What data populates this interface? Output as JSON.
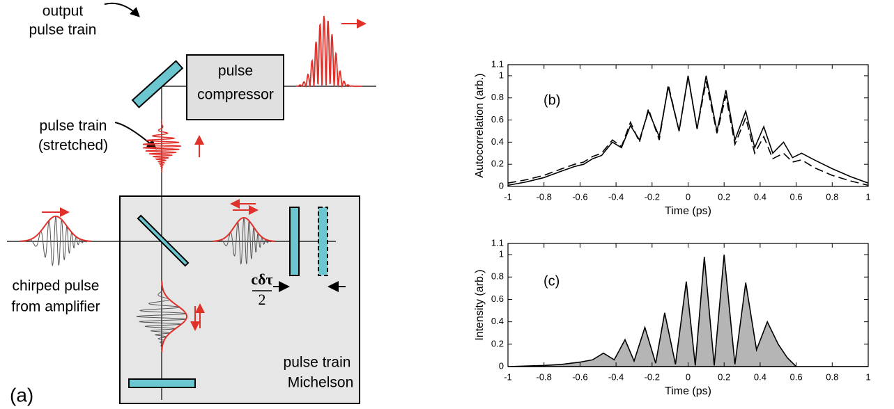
{
  "diagram": {
    "panel_label": "(a)",
    "output_label": [
      "output",
      "pulse train"
    ],
    "compressor_label": [
      "pulse",
      "compressor"
    ],
    "stretched_label": [
      "pulse train",
      "(stretched)"
    ],
    "input_label": [
      "chirped pulse",
      "from amplifier"
    ],
    "michelson_label": [
      "pulse train",
      "Michelson"
    ],
    "delay_label": {
      "numerator": "cδτ",
      "denominator": "2"
    }
  },
  "chart_data": [
    {
      "type": "line",
      "annotation": "(b)",
      "xlabel": "Time (ps)",
      "ylabel": "Autocorrelation (arb.)",
      "x": [
        -1,
        -0.9,
        -0.8,
        -0.7,
        -0.63,
        -0.58,
        -0.53,
        -0.48,
        -0.42,
        -0.37,
        -0.32,
        -0.27,
        -0.22,
        -0.16,
        -0.11,
        -0.05,
        0,
        0.05,
        0.1,
        0.16,
        0.21,
        0.26,
        0.32,
        0.37,
        0.42,
        0.47,
        0.53,
        0.58,
        0.63,
        0.7,
        0.8,
        0.9,
        1
      ],
      "series": [
        {
          "color": "#000000",
          "linestyle": "solid",
          "values": [
            0.01,
            0.04,
            0.08,
            0.14,
            0.18,
            0.2,
            0.25,
            0.28,
            0.4,
            0.35,
            0.55,
            0.42,
            0.68,
            0.45,
            0.9,
            0.5,
            1,
            0.52,
            1,
            0.5,
            0.87,
            0.42,
            0.68,
            0.35,
            0.54,
            0.3,
            0.4,
            0.26,
            0.3,
            0.24,
            0.16,
            0.09,
            0.03
          ]
        },
        {
          "color": "#000000",
          "linestyle": "dashed",
          "values": [
            0.03,
            0.06,
            0.1,
            0.16,
            0.2,
            0.22,
            0.27,
            0.3,
            0.42,
            0.36,
            0.58,
            0.4,
            0.7,
            0.42,
            0.92,
            0.5,
            0.99,
            0.52,
            0.95,
            0.48,
            0.82,
            0.38,
            0.62,
            0.3,
            0.45,
            0.25,
            0.3,
            0.22,
            0.24,
            0.17,
            0.1,
            0.05,
            0.01
          ]
        }
      ],
      "xlim": [
        -1,
        1
      ],
      "xticks": [
        -1,
        -0.8,
        -0.6,
        -0.4,
        -0.2,
        0,
        0.2,
        0.4,
        0.6,
        0.8,
        1
      ],
      "ylim": [
        0,
        1.1
      ],
      "yticks": [
        0,
        0.2,
        0.4,
        0.6,
        0.8,
        1,
        1.1
      ]
    },
    {
      "type": "area",
      "annotation": "(c)",
      "xlabel": "Time (ps)",
      "ylabel": "Intensity (arb.)",
      "x": [
        -1,
        -0.8,
        -0.7,
        -0.6,
        -0.53,
        -0.47,
        -0.41,
        -0.35,
        -0.3,
        -0.24,
        -0.18,
        -0.13,
        -0.07,
        -0.01,
        0.04,
        0.09,
        0.145,
        0.2,
        0.26,
        0.32,
        0.38,
        0.44,
        0.5,
        0.55,
        0.6,
        0.7,
        0.8,
        1
      ],
      "series": [
        {
          "color": "#000000",
          "fill": "#b5b5b5",
          "values": [
            0,
            0.01,
            0.02,
            0.04,
            0.06,
            0.12,
            0.06,
            0.24,
            0.05,
            0.35,
            0.03,
            0.48,
            0.02,
            0.76,
            0.01,
            0.98,
            0.01,
            1.0,
            0.02,
            0.75,
            0.15,
            0.4,
            0.2,
            0.08,
            0,
            0,
            0,
            0
          ]
        }
      ],
      "xlim": [
        -1,
        1
      ],
      "xticks": [
        -1,
        -0.8,
        -0.6,
        -0.4,
        -0.2,
        0,
        0.2,
        0.4,
        0.6,
        0.8,
        1
      ],
      "ylim": [
        0,
        1.1
      ],
      "yticks": [
        0,
        0.2,
        0.4,
        0.6,
        0.8,
        1,
        1.1
      ]
    }
  ]
}
